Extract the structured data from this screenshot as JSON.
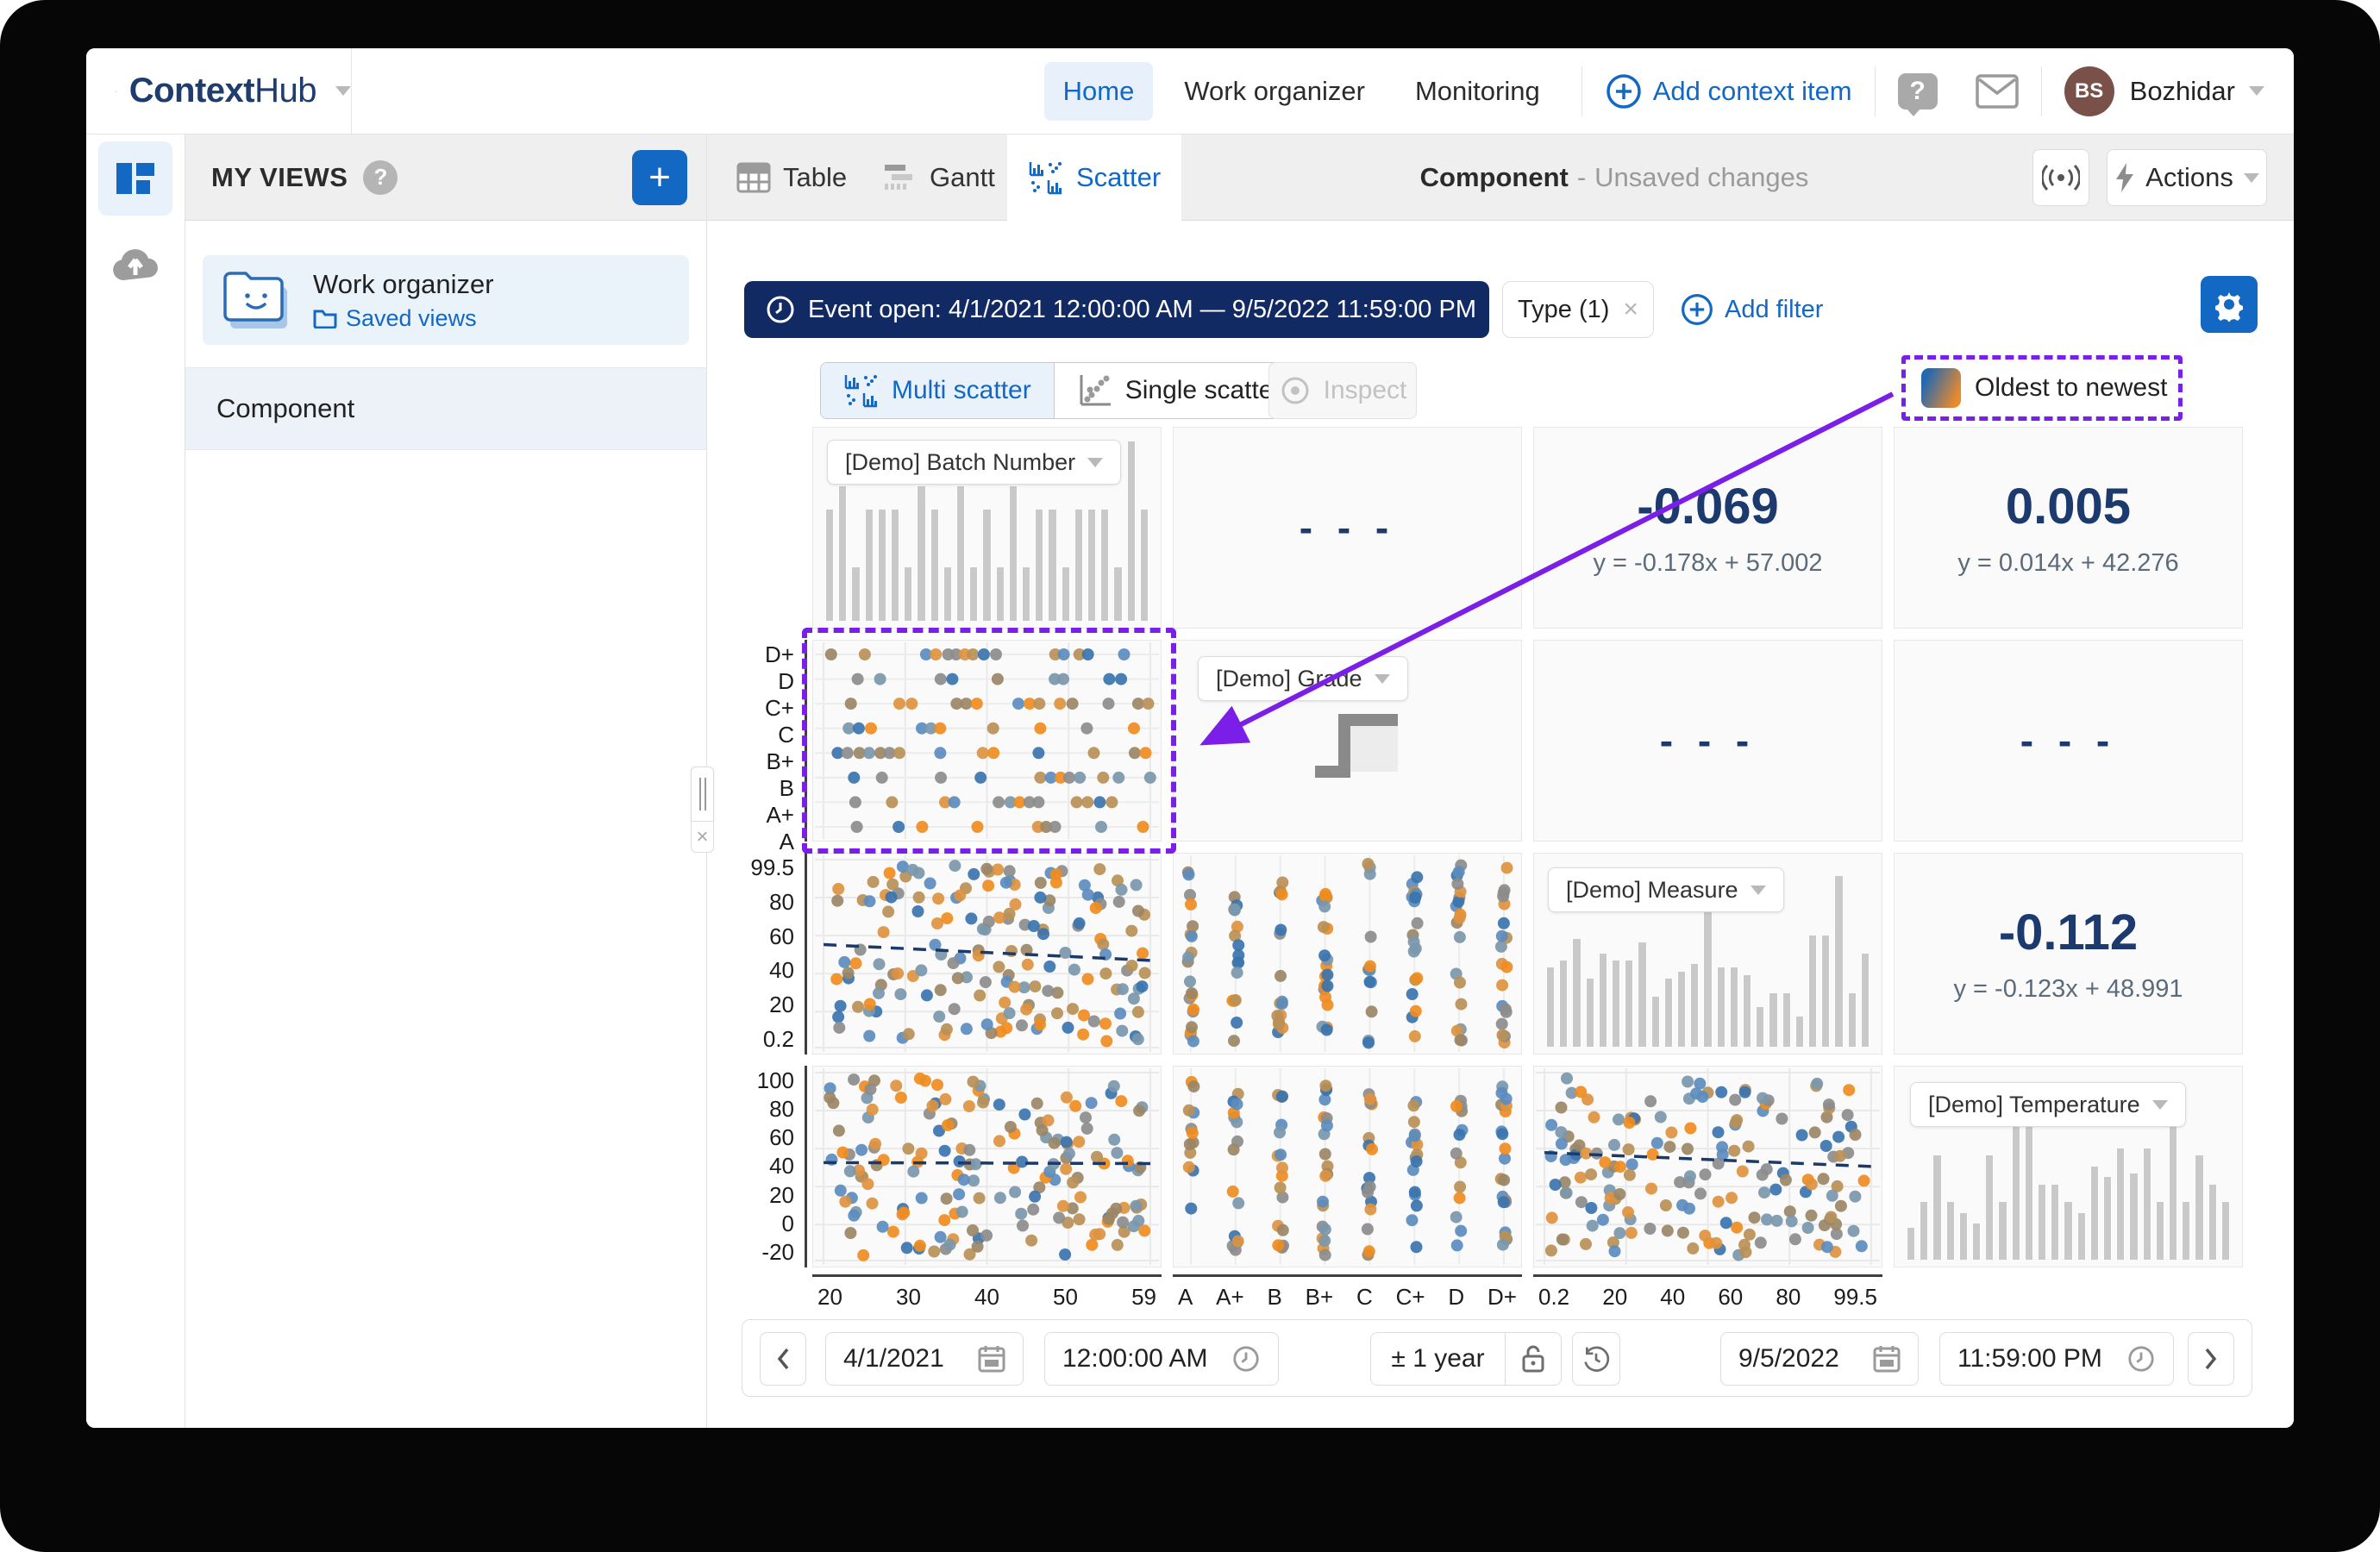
{
  "brand": {
    "part1": "Context",
    "part2": "Hub"
  },
  "nav": {
    "home": "Home",
    "work_organizer": "Work organizer",
    "monitoring": "Monitoring",
    "add_context_item": "Add context item",
    "user_initials": "BS",
    "user_name": "Bozhidar"
  },
  "sidebar": {
    "title": "MY VIEWS",
    "card": {
      "title": "Work organizer",
      "link": "Saved views"
    },
    "items": [
      "Component"
    ]
  },
  "tabs": {
    "table": "Table",
    "gantt": "Gantt",
    "scatter": "Scatter"
  },
  "view_header": {
    "title": "Component",
    "separator": "-",
    "status": "Unsaved changes",
    "actions": "Actions"
  },
  "filter_bar": {
    "event_range": "Event open: 4/1/2021 12:00:00 AM — 9/5/2022 11:59:00 PM",
    "type_chip": "Type (1)",
    "add_filter": "Add filter"
  },
  "scatter_toolbar": {
    "multi": "Multi scatter",
    "single": "Single scatter",
    "inspect": "Inspect"
  },
  "legend": {
    "label": "Oldest to newest"
  },
  "date_toolbar": {
    "start_date": "4/1/2021",
    "start_time": "12:00:00 AM",
    "range": "± 1 year",
    "end_date": "9/5/2022",
    "end_time": "11:59:00 PM"
  },
  "colors": {
    "accent": "#1268c3",
    "navy_value": "#1c3a6e",
    "event_pill": "#122a63",
    "annotation_purple": "#7b1fe8",
    "bar_gray": "#c9c9c9",
    "avatar_brown": "#7a5148"
  },
  "chart_data": {
    "type": "scatter-matrix",
    "variables": [
      "[Demo] Batch Number",
      "[Demo] Grade",
      "[Demo] Measure",
      "[Demo] Temperature"
    ],
    "legend": "Oldest to newest",
    "dot_colors": [
      "#3a74ae",
      "#5b8cbe",
      "#7b97ab",
      "#8c8c8c",
      "#9b8666",
      "#ba9056",
      "#dd9340",
      "#ef8c1f"
    ],
    "row_ticks": [
      null,
      [
        "D+",
        "D",
        "C+",
        "C",
        "B+",
        "B",
        "A+",
        "A"
      ],
      [
        "99.5",
        "80",
        "60",
        "40",
        "20",
        "0.2"
      ],
      [
        "100",
        "80",
        "60",
        "40",
        "20",
        "0",
        "-20"
      ]
    ],
    "col_ticks": [
      [
        "20",
        "30",
        "40",
        "50",
        "59"
      ],
      [
        "A",
        "A+",
        "B",
        "B+",
        "C",
        "C+",
        "D",
        "D+"
      ],
      [
        "0.2",
        "20",
        "40",
        "60",
        "80",
        "99.5"
      ],
      null
    ],
    "x_ranges": {
      "batch_number": [
        20,
        59
      ],
      "measure": [
        0.2,
        99.5
      ],
      "temperature": [
        -20,
        100
      ]
    },
    "cells": [
      {
        "type": "hist",
        "label": "[Demo] Batch Number",
        "bars": [
          62,
          75,
          30,
          62,
          62,
          62,
          30,
          75,
          62,
          30,
          75,
          30,
          62,
          30,
          75,
          30,
          62,
          62,
          30,
          62,
          62,
          62,
          30,
          100,
          62
        ]
      },
      {
        "type": "dashes",
        "value": "- - -"
      },
      {
        "type": "corr",
        "value": "-0.069",
        "equation": "y = -0.178x + 57.002"
      },
      {
        "type": "corr",
        "value": "0.005",
        "equation": "y = 0.014x + 42.276"
      },
      {
        "type": "scatter",
        "layout": "rows",
        "seed": 101,
        "highlighted": true
      },
      {
        "type": "step",
        "label": "[Demo] Grade"
      },
      {
        "type": "dashes",
        "value": "- - -"
      },
      {
        "type": "dashes",
        "value": "- - -"
      },
      {
        "type": "scatter",
        "layout": "uniform",
        "seed": 202,
        "points": 165,
        "trend": {
          "x0": 0.03,
          "y0": 0.455,
          "x1": 0.98,
          "y1": 0.535
        }
      },
      {
        "type": "scatter",
        "layout": "cols",
        "seed": 303
      },
      {
        "type": "hist",
        "label": "[Demo] Measure",
        "bars": [
          44,
          48,
          60,
          38,
          52,
          48,
          48,
          58,
          28,
          38,
          42,
          46,
          75,
          44,
          44,
          40,
          22,
          30,
          30,
          17,
          62,
          62,
          95,
          30,
          52
        ]
      },
      {
        "type": "corr",
        "value": "-0.112",
        "equation": "y = -0.123x + 48.991"
      },
      {
        "type": "scatter",
        "layout": "uniform",
        "seed": 404,
        "points": 165,
        "trend": {
          "x0": 0.03,
          "y0": 0.48,
          "x1": 0.98,
          "y1": 0.485
        }
      },
      {
        "type": "scatter",
        "layout": "cols",
        "seed": 505
      },
      {
        "type": "scatter",
        "layout": "uniform",
        "seed": 606,
        "points": 165,
        "trend": {
          "x0": 0.03,
          "y0": 0.43,
          "x1": 0.98,
          "y1": 0.5
        }
      },
      {
        "type": "hist",
        "label": "[Demo] Temperature",
        "bars": [
          18,
          32,
          58,
          32,
          26,
          20,
          58,
          32,
          74,
          76,
          42,
          42,
          32,
          26,
          52,
          46,
          62,
          48,
          62,
          32,
          74,
          32,
          58,
          42,
          32
        ]
      }
    ]
  }
}
